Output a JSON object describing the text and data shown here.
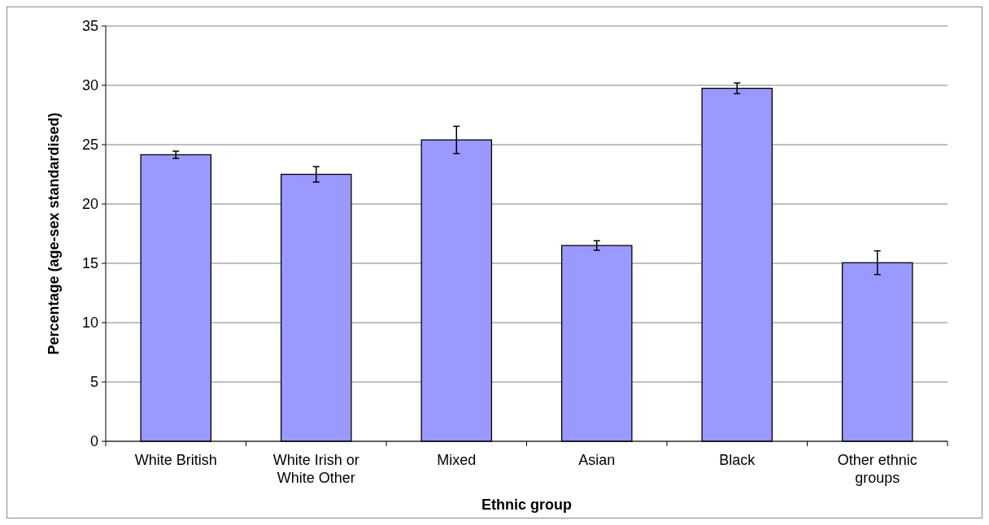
{
  "chart_data": {
    "type": "bar",
    "xlabel": "Ethnic group",
    "ylabel": "Percentage (age-sex standardised)",
    "categories": [
      "White British",
      "White Irish or White Other",
      "Mixed",
      "Asian",
      "Black",
      "Other ethnic groups"
    ],
    "values": [
      24.15,
      22.5,
      25.4,
      16.5,
      29.75,
      15.05
    ],
    "errors": [
      0.3,
      0.65,
      1.15,
      0.4,
      0.45,
      1.0
    ],
    "color": "#9999ff",
    "ylim": [
      0,
      35
    ],
    "yticks": [
      0,
      5,
      10,
      15,
      20,
      25,
      30,
      35
    ],
    "grid": "y"
  }
}
